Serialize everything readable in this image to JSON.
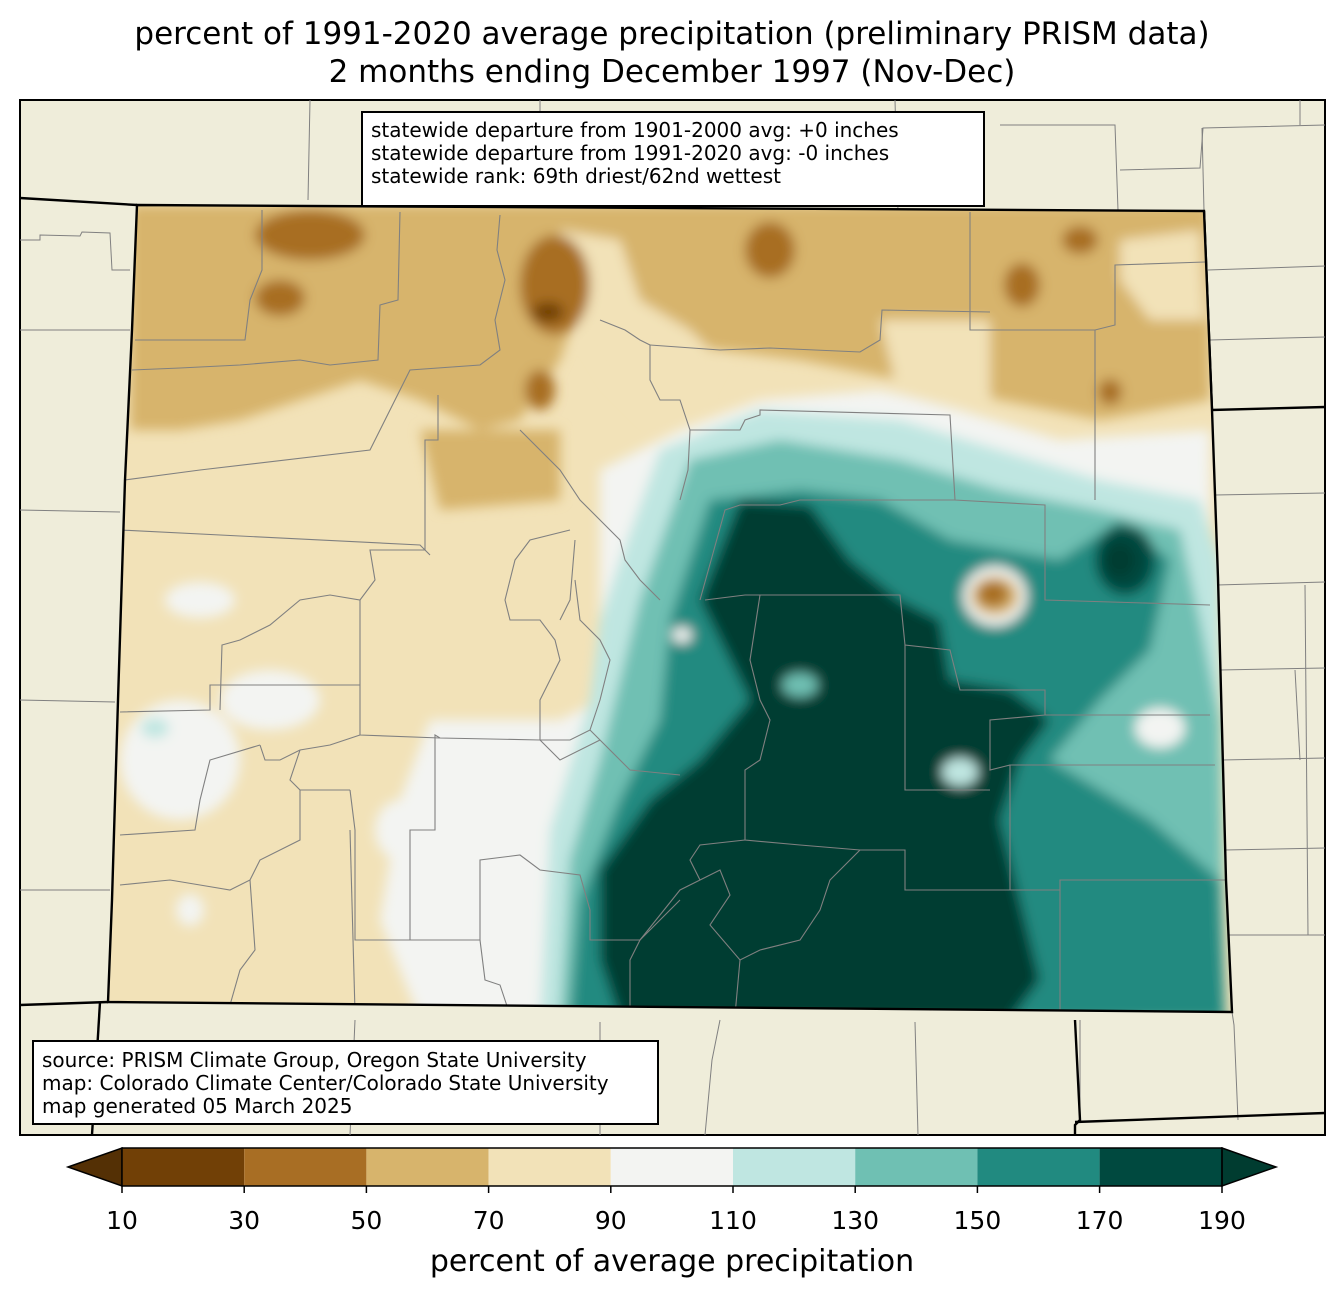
{
  "title": {
    "line1": "percent of 1991-2020 average precipitation (preliminary PRISM data)",
    "line2": "2 months ending December 1997 (Nov-Dec)"
  },
  "stats": {
    "line1": "statewide departure from 1901-2000 avg: +0 inches",
    "line2": "statewide departure from 1991-2020 avg: -0 inches",
    "line3": "statewide rank: 69th driest/62nd wettest"
  },
  "source": {
    "line1": "source: PRISM Climate Group, Oregon State University",
    "line2": "map: Colorado Climate Center/Colorado State University",
    "line3": "map generated 05 March 2025"
  },
  "colorbar": {
    "label": "percent of average precipitation",
    "ticks": [
      "10",
      "30",
      "50",
      "70",
      "90",
      "110",
      "130",
      "150",
      "170",
      "190"
    ],
    "under_color": "#543005",
    "over_color": "#003c30",
    "bins": [
      {
        "range": "10-30",
        "color": "#714006"
      },
      {
        "range": "30-50",
        "color": "#a86e24"
      },
      {
        "range": "50-70",
        "color": "#d7b46c"
      },
      {
        "range": "70-90",
        "color": "#f2e2b8"
      },
      {
        "range": "90-110",
        "color": "#f3f4f2"
      },
      {
        "range": "110-130",
        "color": "#bfe6e1"
      },
      {
        "range": "130-150",
        "color": "#6fc0b3"
      },
      {
        "range": "150-170",
        "color": "#218a80"
      },
      {
        "range": "170-190",
        "color": "#00493f"
      }
    ]
  },
  "map": {
    "region": "Colorado",
    "background_color": "#efedda",
    "county_line_color": "#808080",
    "state_line_color": "#000000"
  }
}
